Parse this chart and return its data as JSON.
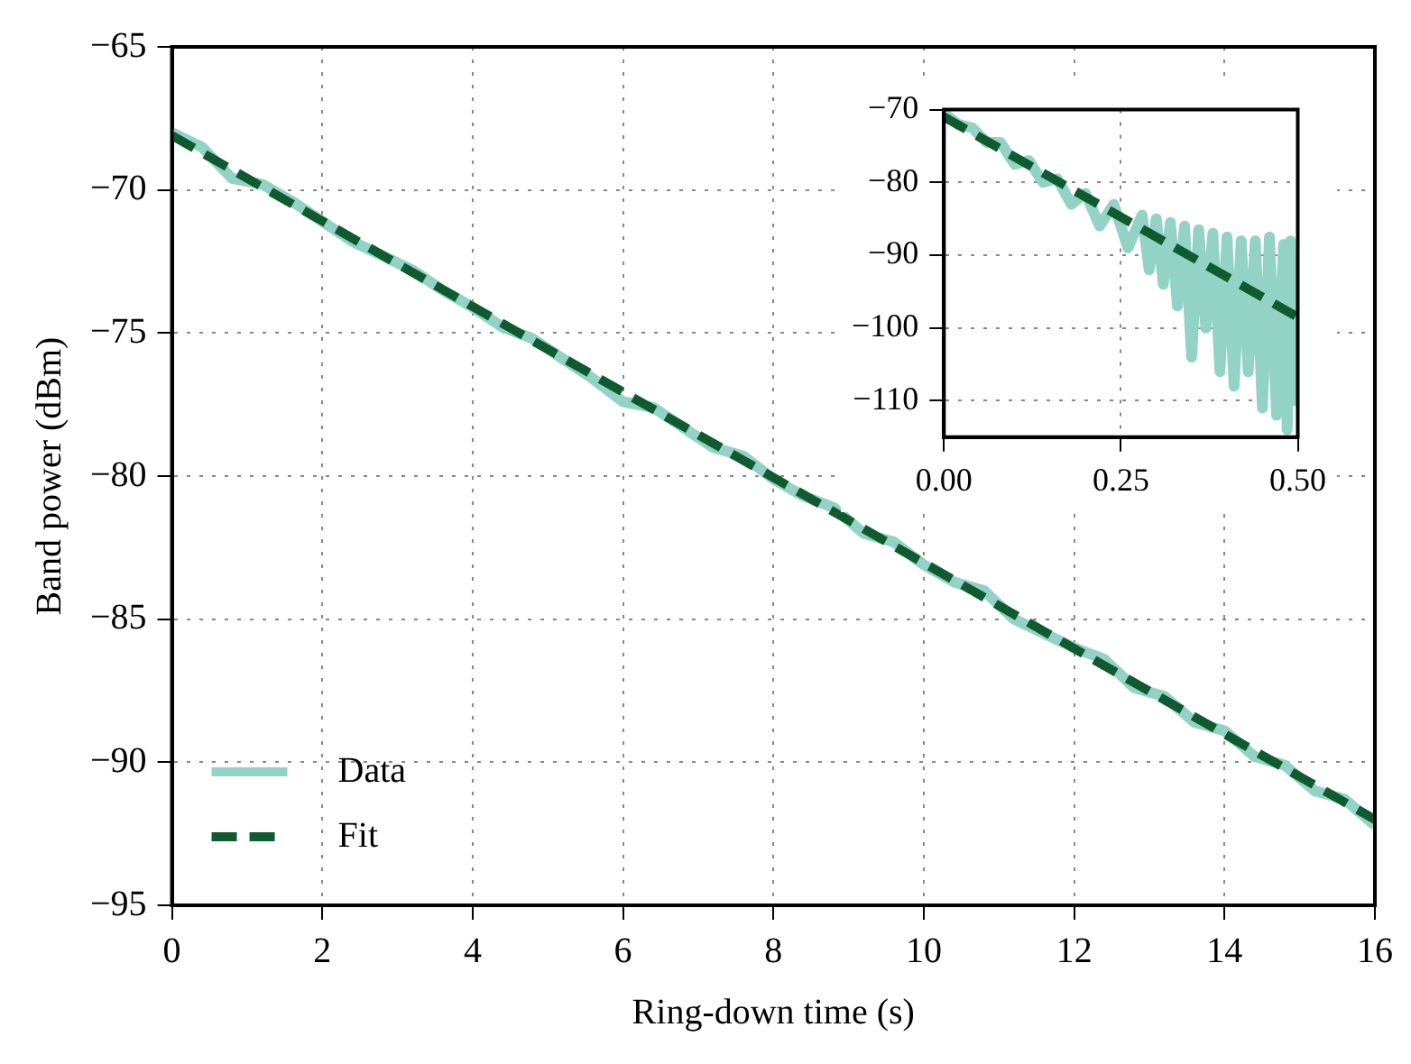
{
  "chart_data": [
    {
      "type": "line",
      "xlabel": "Ring-down time (s)",
      "ylabel": "Band power (dBm)",
      "xlim": [
        0,
        16
      ],
      "xticks": [
        0,
        2,
        4,
        6,
        8,
        10,
        12,
        14,
        16
      ],
      "ylim": [
        -95,
        -65
      ],
      "yticks": [
        -95,
        -90,
        -85,
        -80,
        -75,
        -70,
        -65
      ],
      "grid": true,
      "legend": "bottom left",
      "series": [
        {
          "name": "Data",
          "color": "#93d3c5",
          "line_style": "solid",
          "x": [
            0,
            0.4,
            0.8,
            1.2,
            1.6,
            2.0,
            2.4,
            2.8,
            3.2,
            3.6,
            4.0,
            4.4,
            4.8,
            5.2,
            5.6,
            6.0,
            6.4,
            6.8,
            7.2,
            7.6,
            8.0,
            8.4,
            8.8,
            9.2,
            9.6,
            10.0,
            10.4,
            10.8,
            11.2,
            11.6,
            12.0,
            12.4,
            12.8,
            13.2,
            13.6,
            14.0,
            14.4,
            14.8,
            15.2,
            15.6,
            16.0
          ],
          "values": [
            -68.0,
            -68.5,
            -69.6,
            -69.8,
            -70.4,
            -71.1,
            -71.8,
            -72.3,
            -72.8,
            -73.5,
            -74.1,
            -74.8,
            -75.2,
            -75.9,
            -76.6,
            -77.4,
            -77.6,
            -78.3,
            -79.0,
            -79.3,
            -80.1,
            -80.7,
            -81.1,
            -82.0,
            -82.3,
            -83.1,
            -83.7,
            -84.0,
            -85.0,
            -85.5,
            -86.0,
            -86.4,
            -87.4,
            -87.7,
            -88.6,
            -88.9,
            -89.8,
            -90.1,
            -91.0,
            -91.3,
            -92.2
          ]
        },
        {
          "name": "Fit",
          "color": "#0f5a2e",
          "line_style": "dashed",
          "x": [
            0,
            16
          ],
          "values": [
            -68.1,
            -92.0
          ]
        }
      ]
    },
    {
      "type": "line",
      "xlim": [
        0,
        0.5
      ],
      "xticks": [
        {
          "value": 0,
          "label": "0.00"
        },
        {
          "value": 0.25,
          "label": "0.25"
        },
        {
          "value": 0.5,
          "label": "0.50"
        }
      ],
      "ylim": [
        -115,
        -70
      ],
      "yticks": [
        {
          "value": -110,
          "label": "−110"
        },
        {
          "value": -100,
          "label": "−100"
        },
        {
          "value": -90,
          "label": "−90"
        },
        {
          "value": -80,
          "label": "−80"
        },
        {
          "value": -70,
          "label": "−70"
        }
      ],
      "grid": true,
      "series": [
        {
          "color": "#93d3c5",
          "line_style": "solid",
          "x": [
            0,
            0.02,
            0.04,
            0.06,
            0.08,
            0.1,
            0.12,
            0.14,
            0.16,
            0.18,
            0.2,
            0.22,
            0.24,
            0.26,
            0.28,
            0.29,
            0.3,
            0.31,
            0.32,
            0.33,
            0.34,
            0.35,
            0.36,
            0.37,
            0.38,
            0.39,
            0.4,
            0.41,
            0.42,
            0.43,
            0.44,
            0.45,
            0.46,
            0.47,
            0.48,
            0.485,
            0.49,
            0.495,
            0.5
          ],
          "values": [
            -70.5,
            -72,
            -72.5,
            -74.5,
            -74.5,
            -77.5,
            -77,
            -80,
            -79.5,
            -83,
            -81.5,
            -86,
            -83,
            -89,
            -84.5,
            -92,
            -85,
            -94,
            -85.5,
            -97,
            -86,
            -104,
            -86.5,
            -100,
            -87,
            -106,
            -87.5,
            -108,
            -88,
            -106,
            -88,
            -111,
            -87.5,
            -112,
            -88.5,
            -114,
            -88,
            -110,
            -90
          ]
        },
        {
          "color": "#0f5a2e",
          "line_style": "dashed",
          "x": [
            0,
            0.5
          ],
          "values": [
            -71,
            -98.5
          ]
        }
      ]
    }
  ]
}
